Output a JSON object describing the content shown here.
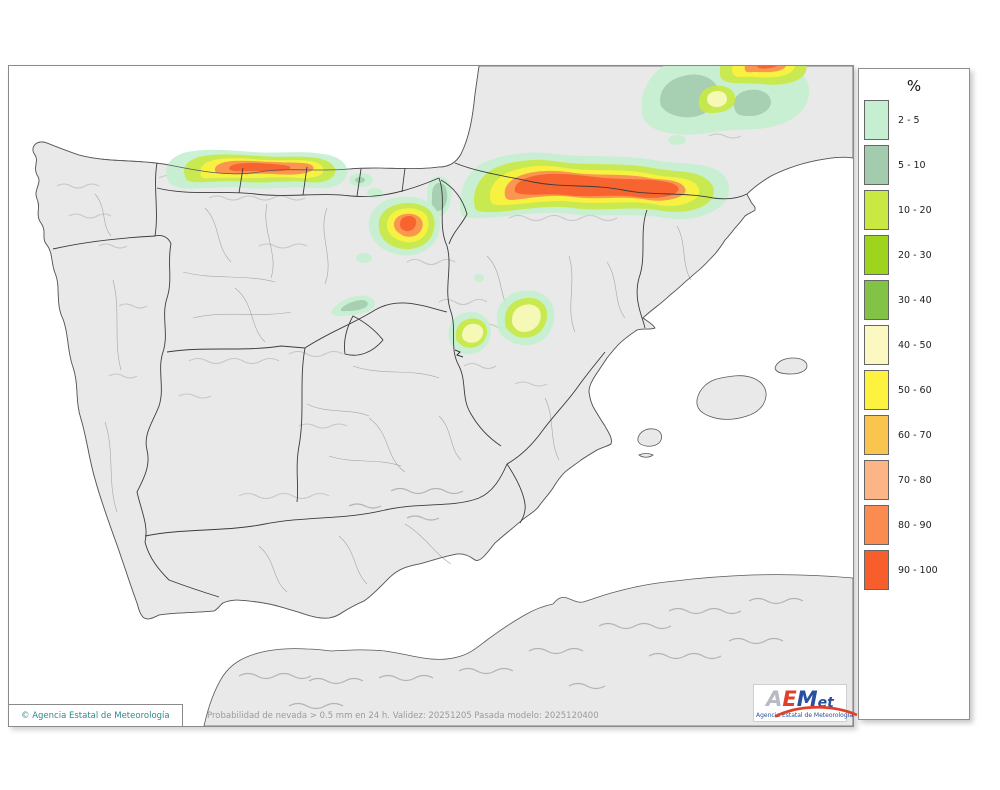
{
  "legend": {
    "title": "%",
    "items": [
      {
        "label": "2 - 5",
        "color": "#c5efd0"
      },
      {
        "label": "5 - 10",
        "color": "#a3cbad"
      },
      {
        "label": "10 - 20",
        "color": "#c9e842"
      },
      {
        "label": "20 - 30",
        "color": "#9fd41e"
      },
      {
        "label": "30 - 40",
        "color": "#82c246"
      },
      {
        "label": "40 - 50",
        "color": "#fbf9c1"
      },
      {
        "label": "50 - 60",
        "color": "#fcf23f"
      },
      {
        "label": "60 - 70",
        "color": "#f9c54e"
      },
      {
        "label": "70 - 80",
        "color": "#fbb587"
      },
      {
        "label": "80 - 90",
        "color": "#fa8c52"
      },
      {
        "label": "90 - 100",
        "color": "#f75e2c"
      }
    ]
  },
  "footer": {
    "copyright": "© Agencia Estatal de Meteorología",
    "caption": "Probabilidad de nevada > 0.5 mm en 24 h. Validez: 20251205 Pasada modelo: 2025120400"
  },
  "logo": {
    "letters": [
      {
        "ch": "A",
        "color": "#b7bac0"
      },
      {
        "ch": "E",
        "color": "#e0402b"
      },
      {
        "ch": "M",
        "color": "#27509e"
      },
      {
        "ch": "et",
        "color": "#27509e"
      }
    ],
    "subtext": "Agencia Estatal de Meteorología"
  }
}
